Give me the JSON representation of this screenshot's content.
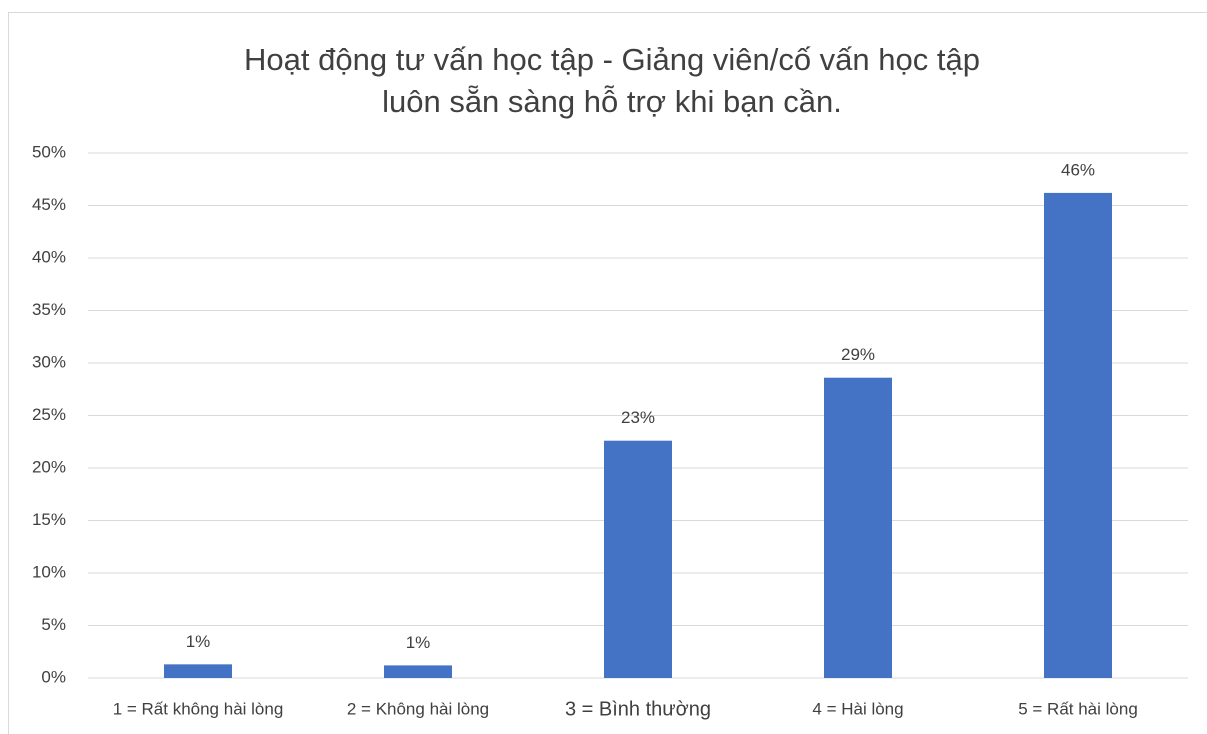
{
  "chart_data": {
    "type": "bar",
    "title": [
      "Hoạt động tư vấn học tập - Giảng viên/cố vấn học tập",
      "luôn sẵn sàng hỗ trợ khi bạn cần."
    ],
    "categories": [
      "1 = Rất không hài lòng",
      "2 = Không hài lòng",
      "3 = Bình thường",
      "4 = Hài lòng",
      "5 = Rất hài lòng"
    ],
    "values": [
      1.3,
      1.2,
      22.6,
      28.6,
      46.2
    ],
    "value_labels": [
      "1%",
      "1%",
      "23%",
      "29%",
      "46%"
    ],
    "color": "#4472c4",
    "ylim": [
      0,
      50
    ],
    "yticks": [
      {
        "value": 0,
        "label": "0%"
      },
      {
        "value": 5,
        "label": "5%"
      },
      {
        "value": 10,
        "label": "10%"
      },
      {
        "value": 15,
        "label": "15%"
      },
      {
        "value": 20,
        "label": "20%"
      },
      {
        "value": 25,
        "label": "25%"
      },
      {
        "value": 30,
        "label": "30%"
      },
      {
        "value": 35,
        "label": "35%"
      },
      {
        "value": 40,
        "label": "40%"
      },
      {
        "value": 45,
        "label": "45%"
      },
      {
        "value": 50,
        "label": "50%"
      }
    ],
    "grid": true
  }
}
